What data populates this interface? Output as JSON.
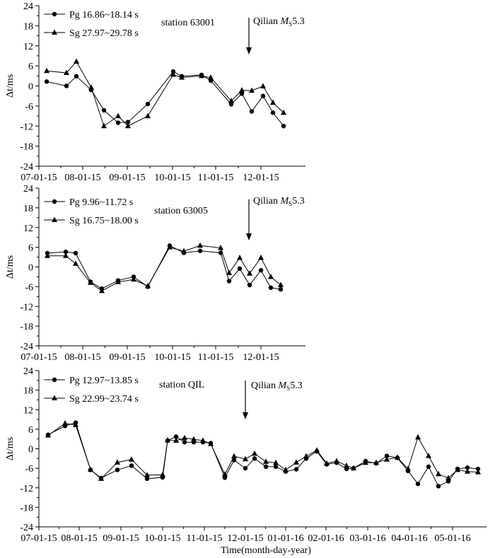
{
  "figure": {
    "xlabel": "Time(month-day-year)"
  },
  "chart_data": [
    {
      "type": "line",
      "station": "station  63001",
      "event_label": "Qilian",
      "event_magnitude": "M",
      "event_sub": "S",
      "event_value": "5.3",
      "event_x": 37.2,
      "ylabel": "Δt/ms",
      "ylim": [
        -24,
        24
      ],
      "yticks": [
        -24,
        -18,
        -12,
        -6,
        0,
        6,
        12,
        18,
        24
      ],
      "xlim": [
        0,
        40.5
      ],
      "xticks": [
        0,
        5,
        10,
        15,
        20,
        25,
        30,
        35
      ],
      "xticklabels": [
        "07-01-15",
        "08-01-15",
        "09-01-15",
        "10-01-15",
        "11-01-15",
        "12-01-15"
      ],
      "xticklabel_positions": [
        0,
        6,
        12,
        18,
        24,
        30
      ],
      "series": [
        {
          "name": "Pg 16.86~18.14 s",
          "marker": "circle",
          "x": [
            0.9,
            3.3,
            4.7,
            6.4,
            8.1,
            10.0,
            11.4,
            13.9,
            17.7,
            19.4,
            21.7,
            23.1,
            24.8,
            26.4,
            27.9,
            29.6,
            31.0,
            32.5,
            34.1
          ],
          "y": [
            1.3,
            0,
            2.9,
            -1.2,
            -7.3,
            -11.0,
            -10.8,
            -5.4,
            4.3,
            2.9,
            3.3,
            1.6,
            -5.5,
            -2.3,
            -7.6,
            -3.0,
            -8.0,
            -12.0,
            null
          ]
        },
        {
          "name": "Sg 27.97~29.78 s",
          "marker": "triangle",
          "x": [
            0.9,
            3.3,
            4.7,
            6.4,
            8.3,
            10.0,
            11.4,
            13.9,
            17.7,
            19.4,
            21.7,
            23.1,
            24.8,
            26.4,
            27.9,
            29.6,
            31.0,
            32.5,
            34.1
          ],
          "y": [
            4.5,
            3.9,
            7.3,
            -0.5,
            -12.0,
            -9.0,
            -12.0,
            -9.0,
            3.4,
            2.5,
            3.0,
            2.5,
            -4.5,
            -1.3,
            -1.4,
            -0.1,
            -5.0,
            -8.0,
            null
          ]
        }
      ]
    },
    {
      "type": "line",
      "station": "station  63005",
      "event_label": "Qilian",
      "event_magnitude": "M",
      "event_sub": "S",
      "event_value": "5.3",
      "ylabel": "Δt/ms",
      "ylim": [
        -24,
        24
      ],
      "yticks": [
        -24,
        -18,
        -12,
        -6,
        0,
        6,
        12,
        18,
        24
      ],
      "xticklabels": [
        "07-01-15",
        "08-01-15",
        "09-01-15",
        "10-01-15",
        "11-01-15",
        "12-01-15"
      ],
      "series": [
        {
          "name": "Pg 9.96~11.72 s",
          "marker": "circle",
          "y": [
            4.2,
            4.6,
            4.2,
            -4.5,
            -6.6,
            -4.1,
            -3.0,
            -6.0,
            6.5,
            4.3,
            4.9,
            4.3,
            -4.3,
            -0.5,
            -5.5,
            -1.0,
            -6.3,
            -6.8
          ]
        },
        {
          "name": "Sg 16.75~18.00 s",
          "marker": "triangle",
          "y": [
            3.4,
            3.4,
            1.0,
            -4.8,
            -7.3,
            -4.6,
            -3.8,
            -5.8,
            6.0,
            4.8,
            6.5,
            5.8,
            -1.8,
            2.8,
            -2.0,
            2.8,
            -3.0,
            -5.5
          ]
        }
      ]
    },
    {
      "type": "line",
      "station": "station QIL",
      "event_label": "Qilian",
      "event_magnitude": "M",
      "event_sub": "S",
      "event_value": "5.3",
      "ylabel": "Δt/ms",
      "xlabel": "Time(month-day-year)",
      "ylim": [
        -24,
        24
      ],
      "yticks": [
        -24,
        -18,
        -12,
        -6,
        0,
        6,
        12,
        18,
        24
      ],
      "xticklabels": [
        "07-01-15",
        "08-01-15",
        "09-01-15",
        "10-01-15",
        "11-01-15",
        "12-01-15",
        "01-01-16",
        "02-01-16",
        "03-01-16",
        "04-01-16",
        "05-01-16"
      ],
      "series": [
        {
          "name": "Pg 12.97~13.85 s",
          "marker": "circle",
          "y": [
            4.3,
            7.0,
            8.0,
            -6.5,
            -9.0,
            -6.5,
            -5.2,
            -9.2,
            -8.8,
            2.5,
            3.7,
            2.0,
            2.0,
            2.0,
            1.7,
            -8.9,
            -3.5,
            -6.0,
            -3.0,
            -5.5,
            -5.5,
            -7.0,
            -6.3,
            -3.0,
            -0.8,
            -4.8,
            -4.3,
            -6.2,
            -6.0,
            -3.8,
            -4.5,
            -2.2,
            -2.8,
            -6.8,
            -10.8,
            -5.5,
            -11.5,
            -10.0,
            -6.2,
            -5.8,
            -6.2
          ]
        },
        {
          "name": "Sg 22.99~23.74 s",
          "marker": "triangle",
          "y": [
            4.1,
            7.8,
            7.3,
            -6.4,
            -9.2,
            -4.2,
            -3.3,
            -8.1,
            -8.0,
            2.6,
            2.5,
            3.3,
            2.9,
            2.5,
            1.5,
            -7.9,
            -2.3,
            -3.2,
            -1.5,
            -4.0,
            -4.3,
            -6.5,
            -4.2,
            -2.3,
            -0.5,
            -4.5,
            -3.8,
            -5.2,
            -6.0,
            -4.3,
            -4.3,
            -3.3,
            -2.7,
            -6.2,
            3.5,
            -2.2,
            -7.8,
            -9.0,
            -6.5,
            -7.0,
            -7.2
          ]
        }
      ]
    }
  ]
}
